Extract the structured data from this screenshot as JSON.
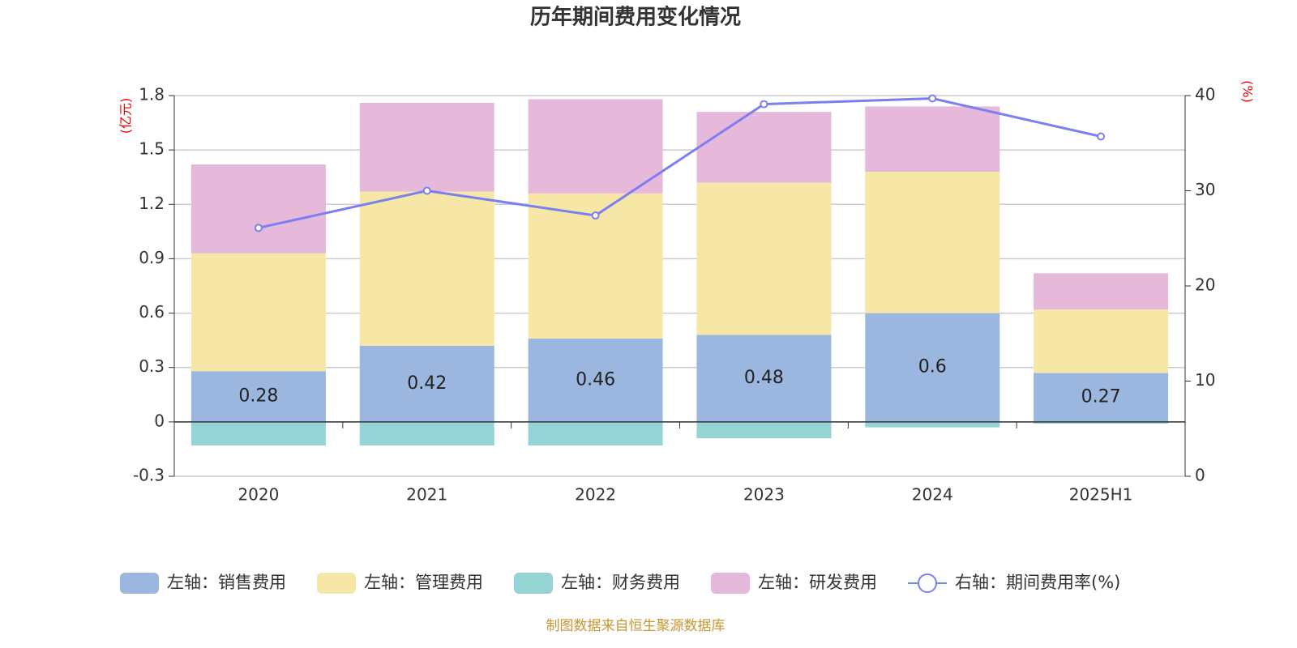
{
  "chart_data": {
    "type": "stacked-bar-line",
    "title": "历年期间费用变化情况",
    "y_label": "(亿元)",
    "y2_label": "(%)",
    "source": "制图数据来自恒生聚源数据库",
    "categories": [
      "2020",
      "2021",
      "2022",
      "2023",
      "2024",
      "2025H1"
    ],
    "ylim": [
      -0.3,
      1.8
    ],
    "yticks": [
      -0.3,
      0,
      0.3,
      0.6,
      0.9,
      1.2,
      1.5,
      1.8
    ],
    "y2lim": [
      0,
      40
    ],
    "y2ticks": [
      0,
      10,
      20,
      30,
      40
    ],
    "grid": true,
    "series": [
      {
        "name": "左轴：销售费用",
        "type": "bar",
        "color": "#9bb7e0",
        "show_labels": true,
        "values": [
          0.28,
          0.42,
          0.46,
          0.48,
          0.6,
          0.27
        ]
      },
      {
        "name": "左轴：管理费用",
        "type": "bar",
        "color": "#f7e7a6",
        "values": [
          0.65,
          0.85,
          0.8,
          0.84,
          0.78,
          0.35
        ]
      },
      {
        "name": "左轴：财务费用",
        "type": "bar",
        "color": "#96d3d4",
        "values": [
          -0.13,
          -0.13,
          -0.13,
          -0.09,
          -0.03,
          -0.01
        ]
      },
      {
        "name": "左轴：研发费用",
        "type": "bar",
        "color": "#e6b8da",
        "values": [
          0.49,
          0.49,
          0.52,
          0.39,
          0.36,
          0.2
        ]
      },
      {
        "name": "右轴：期间费用率(%)",
        "type": "line",
        "axis": "y2",
        "color": "#7b7ff0",
        "values": [
          26.1,
          30.0,
          27.4,
          39.1,
          39.7,
          35.7
        ]
      }
    ]
  }
}
